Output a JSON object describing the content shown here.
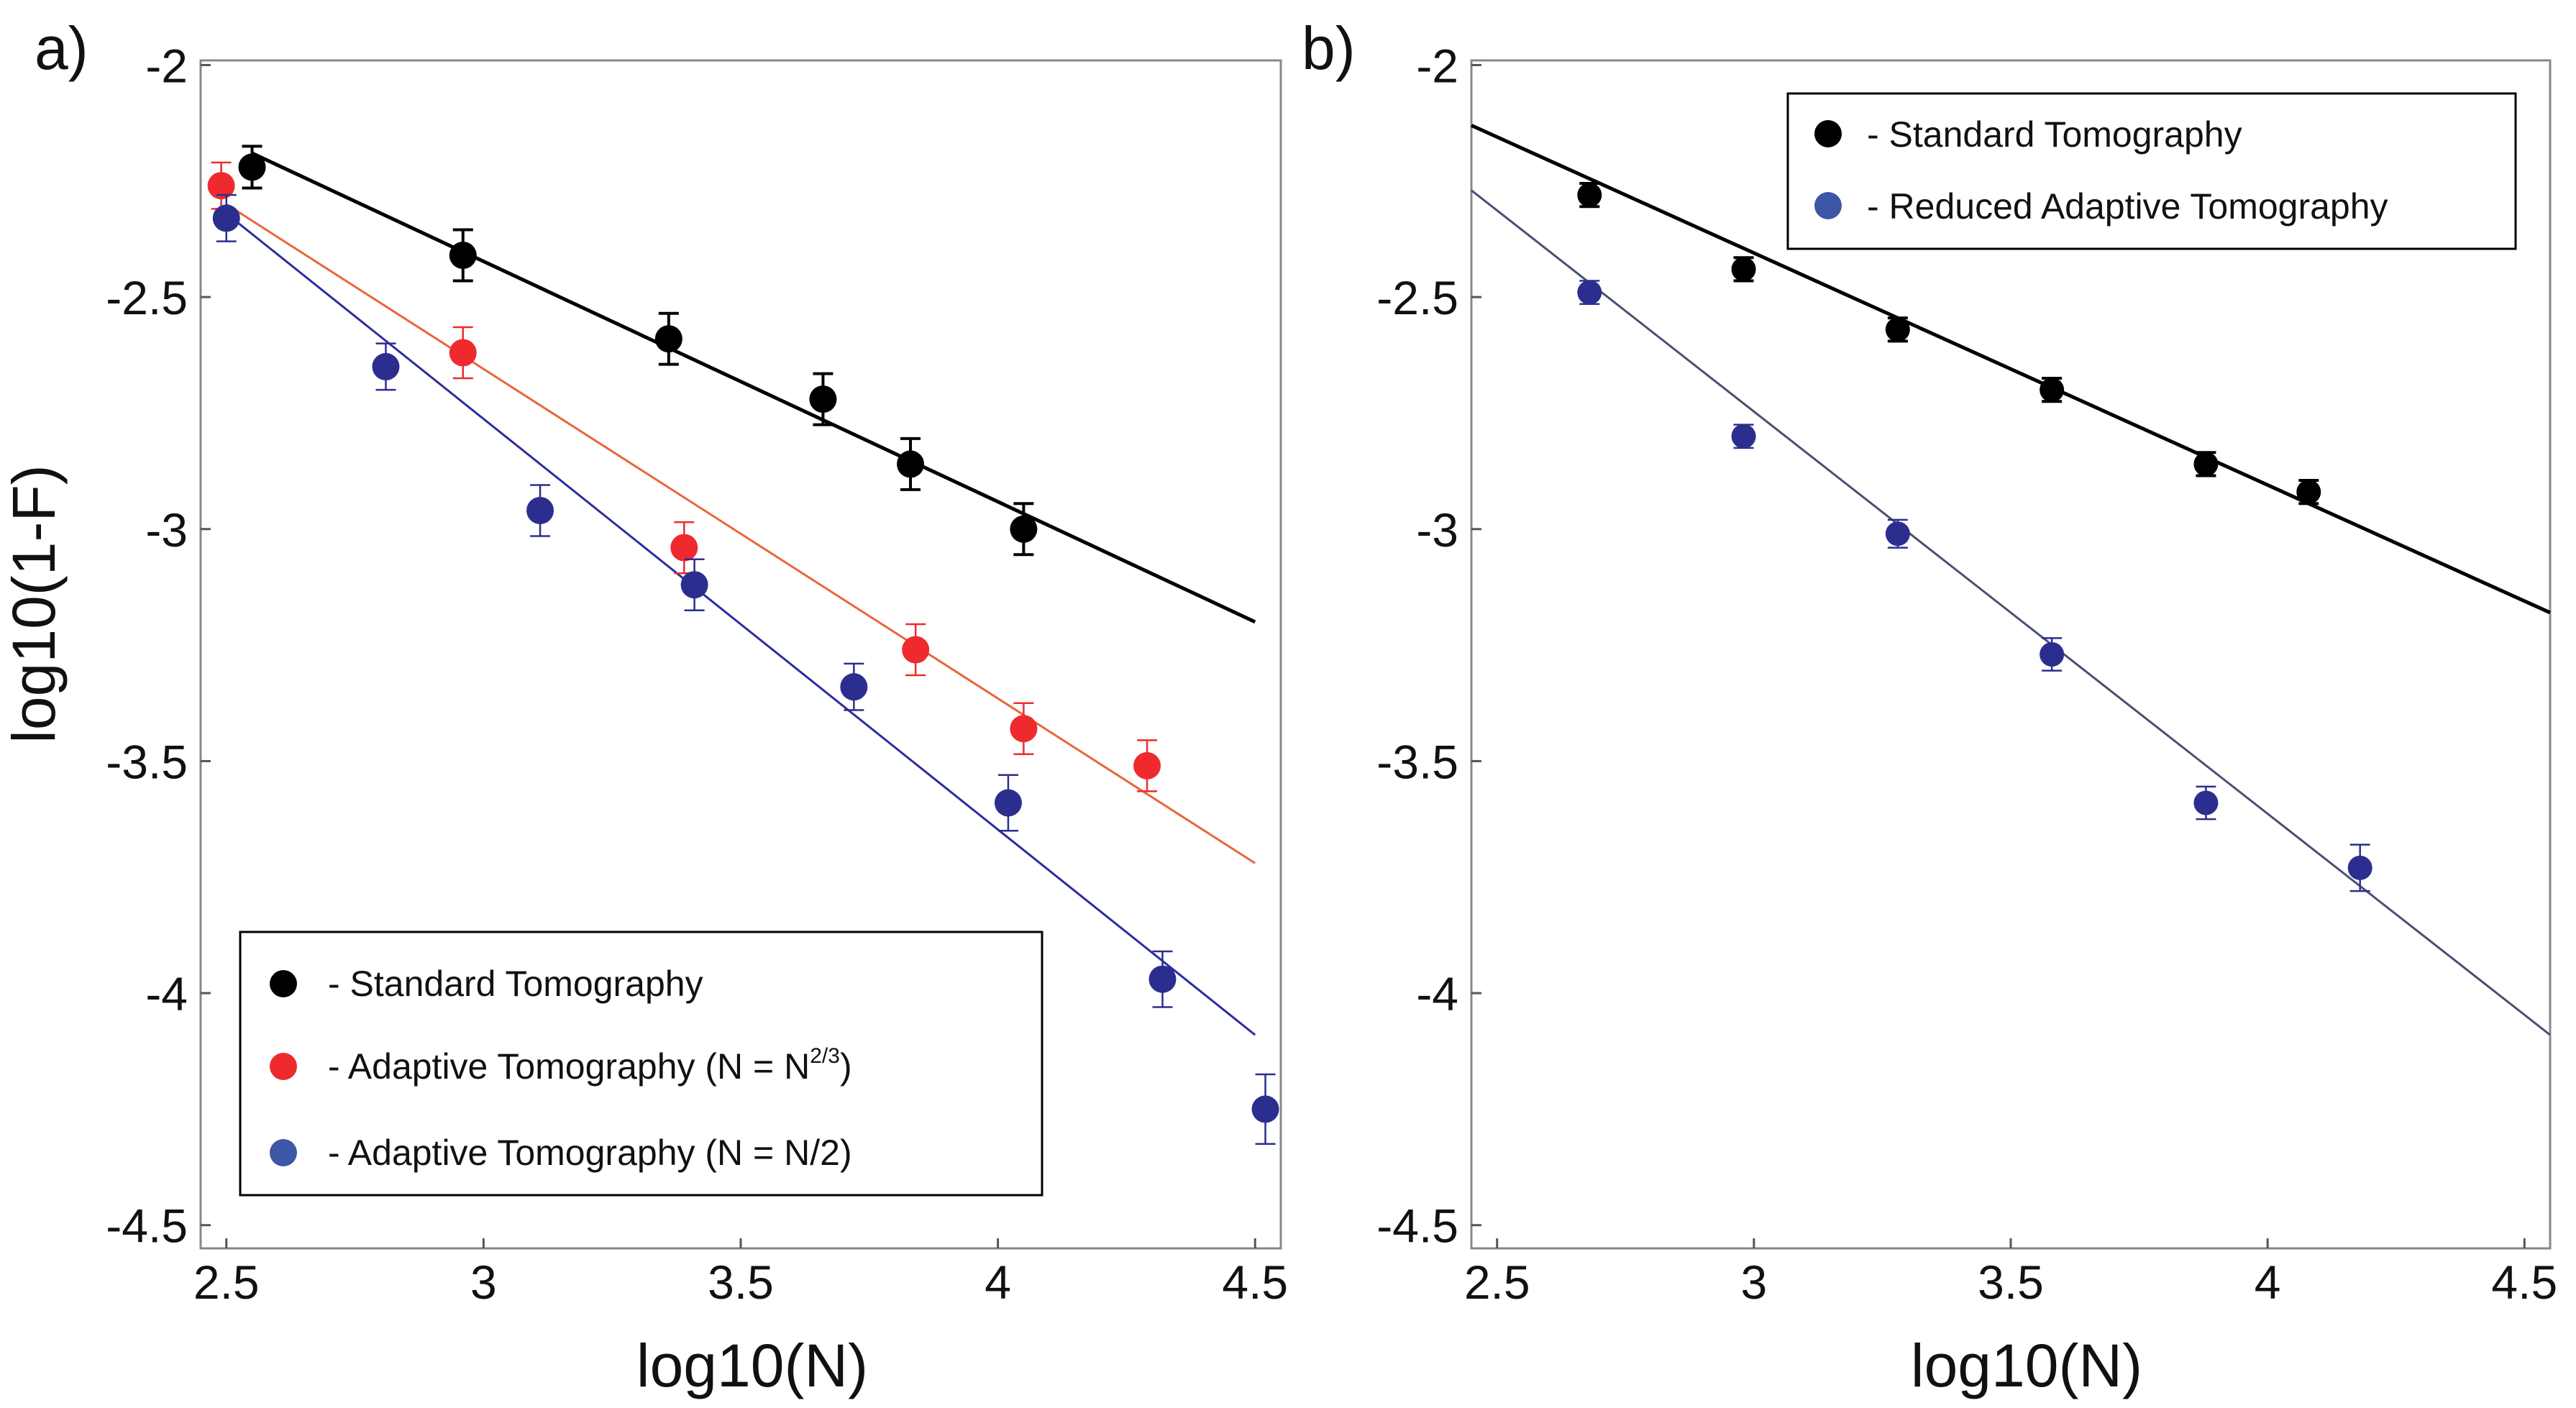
{
  "chart_data": [
    {
      "type": "scatter",
      "panel_label": "a)",
      "xlabel": "log10(N)",
      "ylabel": "log10(1-F)",
      "xlim": [
        2.45,
        4.55
      ],
      "ylim": [
        -4.55,
        -1.99
      ],
      "xticks": [
        2.5,
        3,
        3.5,
        4,
        4.5
      ],
      "xtick_labels": [
        "2.5",
        "3",
        "3.5",
        "4",
        "4.5"
      ],
      "yticks": [
        -2,
        -2.5,
        -3,
        -3.5,
        -4,
        -4.5
      ],
      "ytick_labels": [
        "-2",
        "-2.5",
        "-3",
        "-3.5",
        "-4",
        "-4.5"
      ],
      "grid": false,
      "legend_position": "bottom-left",
      "series": [
        {
          "name": "- Standard Tomography",
          "color": "#000000",
          "x": [
            2.55,
            2.96,
            3.36,
            3.66,
            3.83,
            4.05
          ],
          "y": [
            -2.22,
            -2.41,
            -2.59,
            -2.72,
            -2.86,
            -3.0
          ],
          "yerr": [
            0.045,
            0.055,
            0.055,
            0.055,
            0.055,
            0.055
          ],
          "fit": {
            "x": [
              2.55,
              4.5
            ],
            "y": [
              -2.19,
              -3.2
            ]
          }
        },
        {
          "name": "- Adaptive Tomography (N = N",
          "name_sup": "2/3",
          "name_suffix": ")",
          "color": "#ee2a2f",
          "fit_color": "#e8673a",
          "x": [
            2.49,
            2.96,
            3.39,
            3.84,
            4.05,
            4.29
          ],
          "y": [
            -2.26,
            -2.62,
            -3.04,
            -3.26,
            -3.43,
            -3.51
          ],
          "yerr": [
            0.05,
            0.055,
            0.055,
            0.055,
            0.055,
            0.055
          ],
          "fit": {
            "x": [
              2.5,
              4.5
            ],
            "y": [
              -2.3,
              -3.72
            ]
          }
        },
        {
          "name": "- Adaptive Tomography (N = N/2)",
          "color": "#2b2e8f",
          "fit_color": "#2b2e9f",
          "x": [
            2.5,
            2.81,
            3.11,
            3.41,
            3.72,
            4.02,
            4.32,
            4.52
          ],
          "y": [
            -2.33,
            -2.65,
            -2.96,
            -3.12,
            -3.34,
            -3.59,
            -3.97,
            -4.25
          ],
          "yerr": [
            0.05,
            0.05,
            0.055,
            0.055,
            0.05,
            0.06,
            0.06,
            0.075
          ],
          "fit": {
            "x": [
              2.5,
              4.5
            ],
            "y": [
              -2.32,
              -4.09
            ]
          }
        }
      ],
      "legend": [
        {
          "label": "- Standard Tomography",
          "marker_color": "#000000"
        },
        {
          "label": "- Adaptive Tomography (N = N",
          "sup": "2/3",
          "suffix": ")",
          "marker_color": "#ee2a2f"
        },
        {
          "label": "- Adaptive Tomography (N = N/2)",
          "marker_color": "#3d57a8"
        }
      ]
    },
    {
      "type": "scatter",
      "panel_label": "b)",
      "xlabel": "log10(N)",
      "ylabel": "",
      "xlim": [
        2.45,
        4.55
      ],
      "ylim": [
        -4.55,
        -1.99
      ],
      "xticks": [
        2.5,
        3,
        3.5,
        4,
        4.5
      ],
      "xtick_labels": [
        "2.5",
        "3",
        "3.5",
        "4",
        "4.5"
      ],
      "yticks": [
        -2,
        -2.5,
        -3,
        -3.5,
        -4,
        -4.5
      ],
      "ytick_labels": [
        "-2",
        "-2.5",
        "-3",
        "-3.5",
        "-4",
        "-4.5"
      ],
      "grid": false,
      "legend_position": "top-right",
      "series": [
        {
          "name": "- Standard Tomography",
          "color": "#000000",
          "x": [
            2.68,
            2.98,
            3.28,
            3.58,
            3.88,
            4.08
          ],
          "y": [
            -2.28,
            -2.44,
            -2.57,
            -2.7,
            -2.86,
            -2.92
          ],
          "yerr": [
            0.025,
            0.025,
            0.025,
            0.025,
            0.025,
            0.025
          ],
          "fit": {
            "x": [
              2.45,
              4.55
            ],
            "y": [
              -2.13,
              -3.18
            ]
          }
        },
        {
          "name": "- Reduced Adaptive Tomography",
          "color": "#2b2e8f",
          "fit_color": "#4a5070",
          "x": [
            2.68,
            2.98,
            3.28,
            3.58,
            3.88,
            4.18
          ],
          "y": [
            -2.49,
            -2.8,
            -3.01,
            -3.27,
            -3.59,
            -3.73
          ],
          "yerr": [
            0.025,
            0.025,
            0.03,
            0.035,
            0.035,
            0.05
          ],
          "fit": {
            "x": [
              2.45,
              4.55
            ],
            "y": [
              -2.27,
              -4.09
            ]
          }
        }
      ],
      "legend": [
        {
          "label": "- Standard Tomography",
          "marker_color": "#000000"
        },
        {
          "label": "- Reduced Adaptive Tomography",
          "marker_color": "#3d57a8"
        }
      ]
    }
  ]
}
